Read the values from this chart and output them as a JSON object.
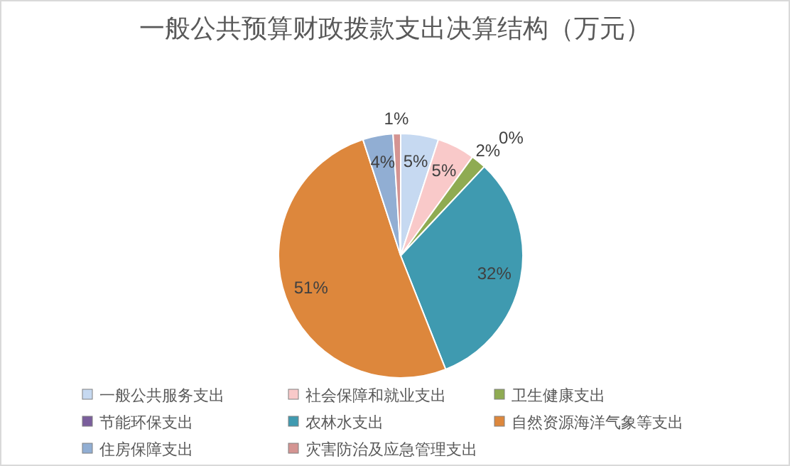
{
  "chart_data": {
    "type": "pie",
    "title": "一般公共预算财政拨款支出决算结构（万元）",
    "categories": [
      "一般公共服务支出",
      "社会保障和就业支出",
      "卫生健康支出",
      "节能环保支出",
      "农林水支出",
      "自然资源海洋气象等支出",
      "住房保障支出",
      "灾害防治及应急管理支出"
    ],
    "values": [
      5,
      5,
      2,
      0,
      32,
      51,
      4,
      1
    ],
    "value_labels": [
      "5%",
      "5%",
      "2%",
      "0%",
      "32%",
      "51%",
      "4%",
      "1%"
    ],
    "colors": [
      "#c6d9f1",
      "#f9c9c9",
      "#8fab52",
      "#7a5e9c",
      "#3f9ab0",
      "#dd873c",
      "#91aed3",
      "#d49492"
    ],
    "legend": "bottom"
  }
}
